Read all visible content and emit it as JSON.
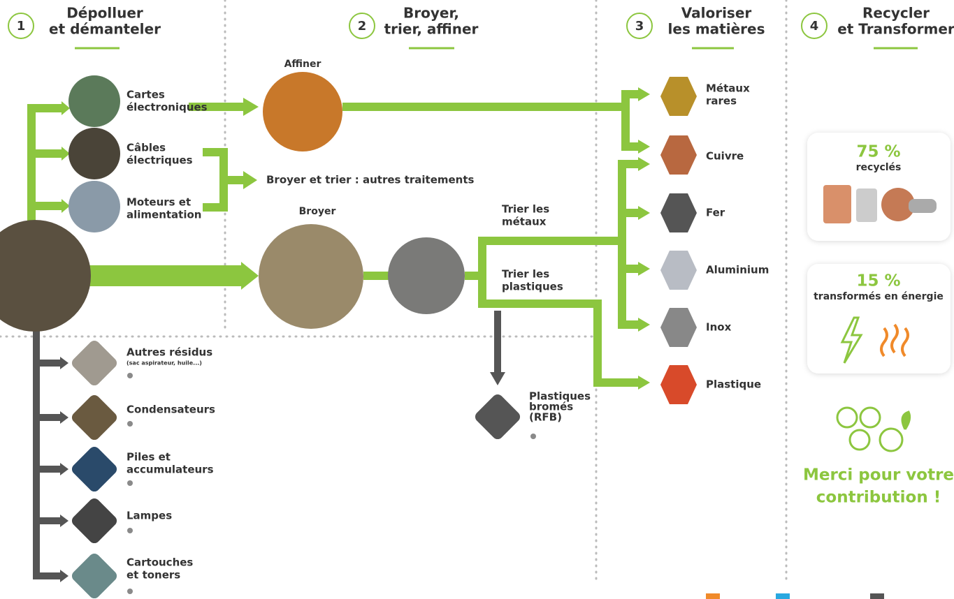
{
  "steps": [
    {
      "number": "1",
      "title": [
        "Dépolluer",
        "et démanteler"
      ]
    },
    {
      "number": "2",
      "title": [
        "Broyer,",
        "trier, affiner"
      ]
    },
    {
      "number": "3",
      "title": [
        "Valoriser",
        "les matières"
      ]
    },
    {
      "number": "4",
      "title": [
        "Recycler",
        "et Transformer"
      ]
    }
  ],
  "components": [
    {
      "label": [
        "Cartes",
        "électroniques"
      ]
    },
    {
      "label": [
        "Câbles",
        "électriques"
      ]
    },
    {
      "label": [
        "Moteurs et",
        "alimentation"
      ]
    }
  ],
  "processes": {
    "affiner": "Affiner",
    "broyer_trier": "Broyer et trier : autres traitements",
    "broyer": "Broyer",
    "trier_metaux": [
      "Trier les",
      "métaux"
    ],
    "trier_plastiques": [
      "Trier les",
      "plastiques"
    ]
  },
  "materials": [
    [
      "Métaux",
      "rares"
    ],
    [
      "Cuivre"
    ],
    [
      "Fer"
    ],
    [
      "Aluminium"
    ],
    [
      "Inox"
    ],
    [
      "Plastique"
    ]
  ],
  "residues": [
    {
      "label": [
        "Autres résidus"
      ],
      "note": "(sac aspirateur, huile...)"
    },
    {
      "label": [
        "Condensateurs"
      ]
    },
    {
      "label": [
        "Piles et",
        "accumulateurs"
      ]
    },
    {
      "label": [
        "Lampes"
      ]
    },
    {
      "label": [
        "Cartouches",
        "et toners"
      ]
    }
  ],
  "bromated": [
    "Plastiques",
    "bromés",
    "(RFB)"
  ],
  "results": [
    {
      "value": "75 %",
      "label": "recyclés"
    },
    {
      "value": "15 %",
      "label": "transformés en énergie"
    }
  ],
  "thanks": [
    "Merci pour votre",
    "contribution !"
  ]
}
